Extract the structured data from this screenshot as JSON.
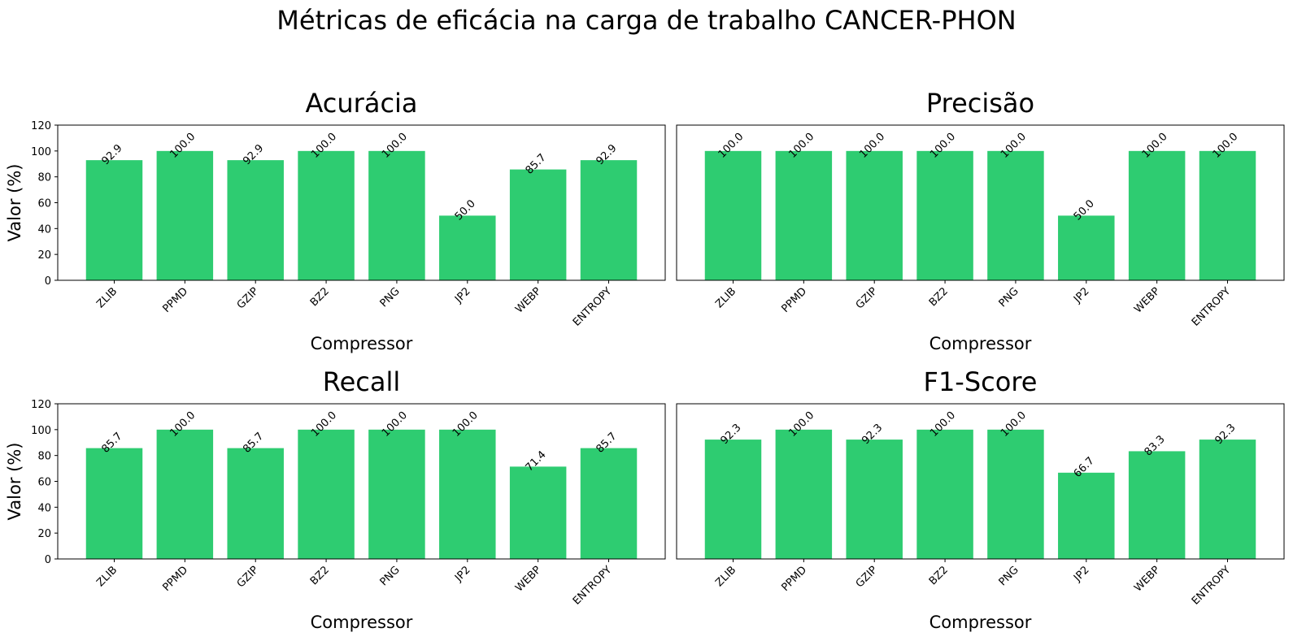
{
  "figure_title": "Métricas de eficácia na carga de trabalho CANCER-PHON",
  "bar_color": "#2ecc71",
  "chart_data": [
    {
      "type": "bar",
      "title": "Acurácia",
      "xlabel": "Compressor",
      "ylabel": "Valor (%)",
      "ylim": [
        0,
        120
      ],
      "yticks": [
        "0",
        "20",
        "40",
        "60",
        "80",
        "100",
        "120"
      ],
      "categories": [
        "ZLIB",
        "PPMD",
        "GZIP",
        "BZ2",
        "PNG",
        "JP2",
        "WEBP",
        "ENTROPY"
      ],
      "values": [
        92.9,
        100.0,
        92.9,
        100.0,
        100.0,
        50.0,
        85.7,
        92.9
      ],
      "data_labels": [
        "92.9",
        "100.0",
        "92.9",
        "100.0",
        "100.0",
        "50.0",
        "85.7",
        "92.9"
      ]
    },
    {
      "type": "bar",
      "title": "Precisão",
      "xlabel": "Compressor",
      "ylabel": "",
      "ylim": [
        0,
        120
      ],
      "yticks": [],
      "categories": [
        "ZLIB",
        "PPMD",
        "GZIP",
        "BZ2",
        "PNG",
        "JP2",
        "WEBP",
        "ENTROPY"
      ],
      "values": [
        100.0,
        100.0,
        100.0,
        100.0,
        100.0,
        50.0,
        100.0,
        100.0
      ],
      "data_labels": [
        "100.0",
        "100.0",
        "100.0",
        "100.0",
        "100.0",
        "50.0",
        "100.0",
        "100.0"
      ]
    },
    {
      "type": "bar",
      "title": "Recall",
      "xlabel": "Compressor",
      "ylabel": "Valor (%)",
      "ylim": [
        0,
        120
      ],
      "yticks": [
        "0",
        "20",
        "40",
        "60",
        "80",
        "100",
        "120"
      ],
      "categories": [
        "ZLIB",
        "PPMD",
        "GZIP",
        "BZ2",
        "PNG",
        "JP2",
        "WEBP",
        "ENTROPY"
      ],
      "values": [
        85.7,
        100.0,
        85.7,
        100.0,
        100.0,
        100.0,
        71.4,
        85.7
      ],
      "data_labels": [
        "85.7",
        "100.0",
        "85.7",
        "100.0",
        "100.0",
        "100.0",
        "71.4",
        "85.7"
      ]
    },
    {
      "type": "bar",
      "title": "F1-Score",
      "xlabel": "Compressor",
      "ylabel": "",
      "ylim": [
        0,
        120
      ],
      "yticks": [],
      "categories": [
        "ZLIB",
        "PPMD",
        "GZIP",
        "BZ2",
        "PNG",
        "JP2",
        "WEBP",
        "ENTROPY"
      ],
      "values": [
        92.3,
        100.0,
        92.3,
        100.0,
        100.0,
        66.7,
        83.3,
        92.3
      ],
      "data_labels": [
        "92.3",
        "100.0",
        "92.3",
        "100.0",
        "100.0",
        "66.7",
        "83.3",
        "92.3"
      ]
    }
  ]
}
